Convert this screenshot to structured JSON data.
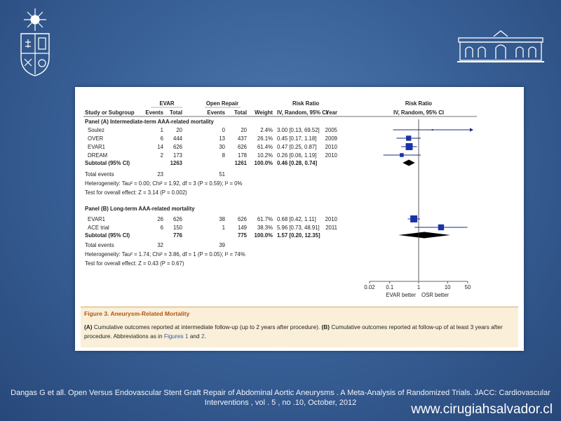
{
  "chart_data": {
    "type": "forest",
    "group_headers": {
      "evar": "EVAR",
      "open": "Open Repair",
      "rr_left": "Risk Ratio",
      "rr_right": "Risk Ratio"
    },
    "columns": {
      "study": "Study or Subgroup",
      "evar_events": "Events",
      "evar_total": "Total",
      "open_events": "Events",
      "open_total": "Total",
      "weight": "Weight",
      "rr": "IV, Random, 95% CI",
      "year": "Year",
      "plot": "IV, Random, 95% CI"
    },
    "panels": [
      {
        "title": "Panel (A) Intermediate-term AAA-related mortality",
        "studies": [
          {
            "name": "Soulez",
            "evar_events": "1",
            "evar_total": "20",
            "open_events": "0",
            "open_total": "20",
            "weight": "2.4%",
            "rr_text": "3.00 [0.13, 69.52]",
            "year": "2005",
            "rr": 3.0,
            "lo": 0.13,
            "hi": 69.52,
            "arrow": true
          },
          {
            "name": "OVER",
            "evar_events": "6",
            "evar_total": "444",
            "open_events": "13",
            "open_total": "437",
            "weight": "26.1%",
            "rr_text": "0.45 [0.17, 1.18]",
            "year": "2009",
            "rr": 0.45,
            "lo": 0.17,
            "hi": 1.18,
            "w": 26.1
          },
          {
            "name": "EVAR1",
            "evar_events": "14",
            "evar_total": "626",
            "open_events": "30",
            "open_total": "626",
            "weight": "61.4%",
            "rr_text": "0.47 [0.25, 0.87]",
            "year": "2010",
            "rr": 0.47,
            "lo": 0.25,
            "hi": 0.87,
            "w": 61.4
          },
          {
            "name": "DREAM",
            "evar_events": "2",
            "evar_total": "173",
            "open_events": "8",
            "open_total": "178",
            "weight": "10.2%",
            "rr_text": "0.26 [0.06, 1.19]",
            "year": "2010",
            "rr": 0.26,
            "lo": 0.06,
            "hi": 1.19,
            "w": 10.2
          }
        ],
        "subtotal": {
          "label": "Subtotal (95% CI)",
          "evar_total": "1263",
          "open_total": "1261",
          "weight": "100.0%",
          "rr_text": "0.46 [0.28, 0.74]",
          "rr": 0.46,
          "lo": 0.28,
          "hi": 0.74
        },
        "total_events": {
          "label": "Total events",
          "evar": "23",
          "open": "51"
        },
        "heterogeneity": "Heterogeneity: Tau² = 0.00; Chi² = 1.92, df = 3 (P = 0.59); I² = 0%",
        "overall_effect": "Test for overall effect: Z = 3.14 (P = 0.002)"
      },
      {
        "title": "Panel (B) Long-term AAA-related mortality",
        "studies": [
          {
            "name": "EVAR1",
            "evar_events": "26",
            "evar_total": "626",
            "open_events": "38",
            "open_total": "626",
            "weight": "61.7%",
            "rr_text": "0.68 [0.42, 1.11]",
            "year": "2010",
            "rr": 0.68,
            "lo": 0.42,
            "hi": 1.11,
            "w": 61.7
          },
          {
            "name": "ACE trial",
            "evar_events": "6",
            "evar_total": "150",
            "open_events": "1",
            "open_total": "149",
            "weight": "38.3%",
            "rr_text": "5.96 [0.73, 48.91]",
            "year": "2011",
            "rr": 5.96,
            "lo": 0.73,
            "hi": 48.91,
            "w": 38.3
          }
        ],
        "subtotal": {
          "label": "Subtotal (95% CI)",
          "evar_total": "776",
          "open_total": "775",
          "weight": "100.0%",
          "rr_text": "1.57 [0.20, 12.35]",
          "rr": 1.57,
          "lo": 0.2,
          "hi": 12.35
        },
        "total_events": {
          "label": "Total events",
          "evar": "32",
          "open": "39"
        },
        "heterogeneity": "Heterogeneity: Tau² = 1.74; Chi² = 3.86, df = 1 (P = 0.05); I² = 74%",
        "overall_effect": "Test for overall effect: Z = 0.43 (P = 0.67)"
      }
    ],
    "x_axis": {
      "scale": "log",
      "ticks": [
        0.02,
        0.1,
        1,
        10,
        50
      ],
      "tick_labels": [
        "0.02",
        "0.1",
        "1",
        "10",
        "50"
      ],
      "range": [
        0.02,
        50
      ]
    },
    "favours_left": "EVAR better",
    "favours_right": "OSR better"
  },
  "caption": {
    "title": "Figure 3. Aneurysm-Related Mortality",
    "t1": "(A)",
    "t2": " Cumulative outcomes reported at intermediate follow-up (up to 2 years after procedure). ",
    "t3": "(B)",
    "t4": " Cumulative outcomes reported at follow-up of at least 3 years after procedure. Abbreviations as in ",
    "t5": "Figures 1",
    "t6": " and ",
    "t7": "2",
    "t8": "."
  },
  "citation": {
    "line1": "Dangas G et all. Open Versus Endovascular Stent Graft Repair of Abdominal Aortic Aneurysms .  A Meta-Analysis of Randomized Trials. JACC: Cardiovascular",
    "line2": "Interventions , vol . 5 , no .10, October, 2012"
  },
  "website": "www.cirugiahsalvador.cl",
  "colors": {
    "marker": "#1a33a8",
    "diamond": "#000000",
    "caption_title": "#b2541a",
    "caption_bg": "#faefd8"
  }
}
